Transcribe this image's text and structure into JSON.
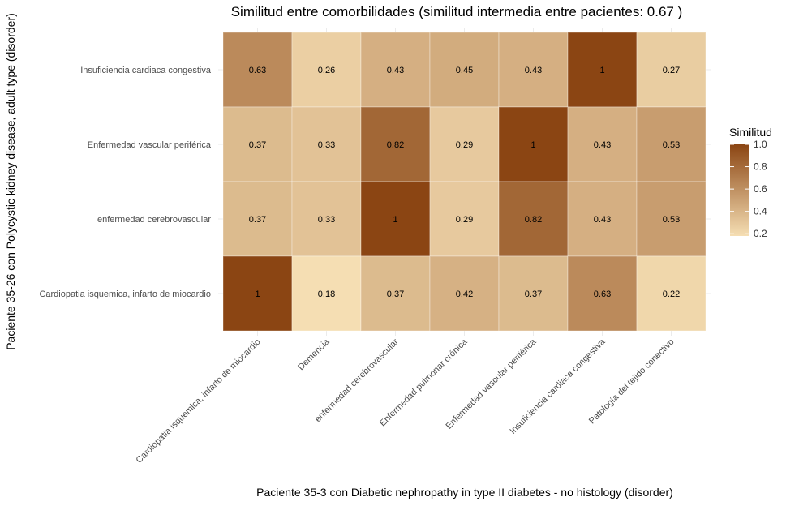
{
  "chart_data": {
    "type": "heatmap",
    "title": "Similitud entre comorbilidades (similitud intermedia entre pacientes:  0.67 )",
    "xlabel": "Paciente 35-3 con Diabetic nephropathy in type II diabetes - no histology (disorder)",
    "ylabel": "Paciente 35-26 con Polycystic kidney disease, adult type (disorder)",
    "x_categories": [
      "Cardiopatia isquemica, infarto de miocardio",
      "Demencia",
      "enfermedad cerebrovascular",
      "Enfermedad pulmonar crónica",
      "Enfermedad vascular periférica",
      "Insuficiencia cardiaca congestiva",
      "Patología del tejido conectivo"
    ],
    "y_categories": [
      "Insuficiencia cardiaca congestiva",
      "Enfermedad vascular periférica",
      "enfermedad cerebrovascular",
      "Cardiopatia isquemica, infarto de miocardio"
    ],
    "values": [
      [
        0.63,
        0.26,
        0.43,
        0.45,
        0.43,
        1,
        0.27
      ],
      [
        0.37,
        0.33,
        0.82,
        0.29,
        1,
        0.43,
        0.53
      ],
      [
        0.37,
        0.33,
        1,
        0.29,
        0.82,
        0.43,
        0.53
      ],
      [
        1,
        0.18,
        0.37,
        0.42,
        0.37,
        0.63,
        0.22
      ]
    ],
    "legend": {
      "title": "Similitud",
      "ticks": [
        "1.0",
        "0.8",
        "0.6",
        "0.4",
        "0.2"
      ],
      "tick_values": [
        1.0,
        0.8,
        0.6,
        0.4,
        0.2
      ],
      "range": [
        0.18,
        1.0
      ],
      "low_color": "#f5deb3",
      "high_color": "#8b4513",
      "placement": "right"
    }
  }
}
